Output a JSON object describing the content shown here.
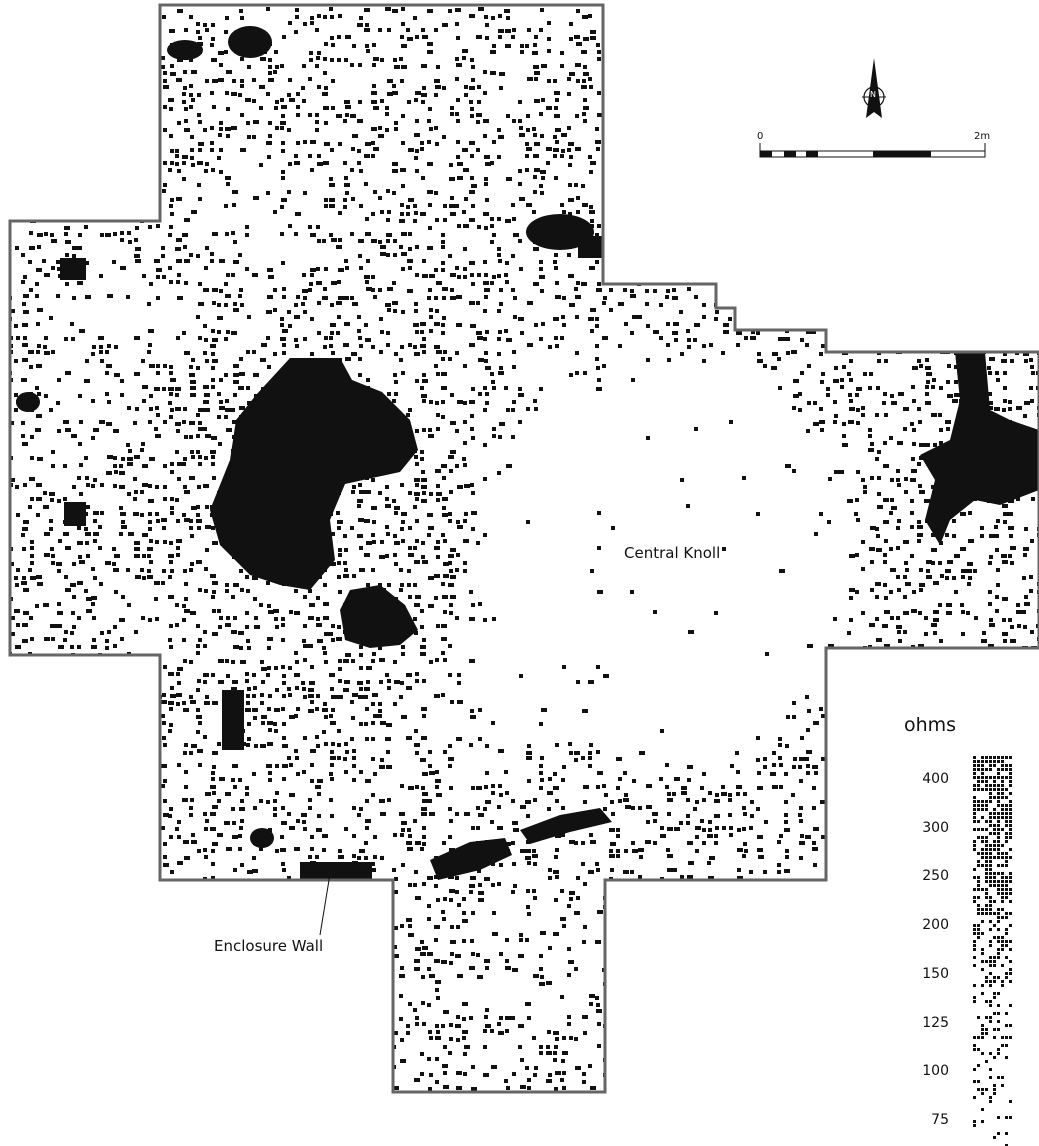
{
  "survey": {
    "feature_labels": {
      "central_knoll": "Central Knoll",
      "enclosure_wall": "Enclosure Wall"
    },
    "north_arrow_letter": "N",
    "scale_bar": {
      "start_label": "0",
      "end_label": "2m"
    },
    "legend": {
      "unit": "ohms",
      "ticks": [
        "400",
        "300",
        "250",
        "200",
        "150",
        "125",
        "100",
        "75"
      ]
    },
    "colors": {
      "ink": "#111111",
      "outline": "#666666",
      "background": "#ffffff"
    }
  }
}
